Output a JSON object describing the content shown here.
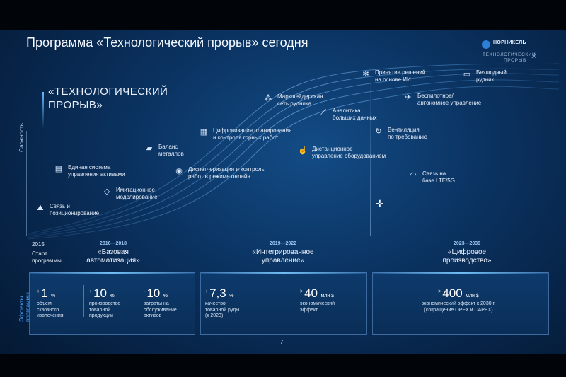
{
  "title": "Программа «Технологический прорыв» сегодня",
  "logo": {
    "name": "НОРНИКЕЛЬ",
    "sub_line1": "ТЕХНОЛОГИЧЕСКИЙ",
    "sub_line2": "ПРОРЫВ"
  },
  "program_label": {
    "line1": "«ТЕХНОЛОГИЧЕСКИЙ",
    "line2": "ПРОРЫВ»"
  },
  "y_axis_label": "Сложность",
  "initiatives": [
    {
      "icon": "positioning-icon",
      "line1": "Связь и",
      "line2": "позиционирование"
    },
    {
      "icon": "asset-management-icon",
      "line1": "Единая система",
      "line2": "управления активами"
    },
    {
      "icon": "cube-icon",
      "line1": "Имитационное",
      "line2": "моделирование"
    },
    {
      "icon": "metal-bars-icon",
      "line1": "Баланс",
      "line2": "металлов"
    },
    {
      "icon": "eye-icon",
      "line1": "Диспетчеризация и контроль",
      "line2": "работ в режиме онлайн"
    },
    {
      "icon": "planning-icon",
      "line1": "Цифровизация планирования",
      "line2": "и контроля горных работ"
    },
    {
      "icon": "network-icon",
      "line1": "Маркшейдерская",
      "line2": "сеть рудника"
    },
    {
      "icon": "remote-control-icon",
      "line1": "Дистанционное",
      "line2": "управление оборудованием"
    },
    {
      "icon": "analytics-icon",
      "line1": "Аналитика",
      "line2": "больших данных"
    },
    {
      "icon": "ai-brain-icon",
      "line1": "Принятие решений",
      "line2": "на основе ИИ"
    },
    {
      "icon": "drone-icon",
      "line1": "Беспилотное/",
      "line2": "автономное управление"
    },
    {
      "icon": "ventilation-icon",
      "line1": "Вентиляция",
      "line2": "по требованию"
    },
    {
      "icon": "wifi-icon",
      "line1": "Связь на",
      "line2": "базе LTE/5G"
    },
    {
      "icon": "monitor-icon",
      "line1": "Безлюдный",
      "line2": "рудник"
    }
  ],
  "timeline": {
    "start_year": "2015",
    "start_label_line1": "Старт",
    "start_label_line2": "программы",
    "phases": [
      {
        "years": "2016—2018",
        "line1": "«Базовая",
        "line2": "автоматизация»"
      },
      {
        "years": "2019—2022",
        "line1": "«Интегрированное",
        "line2": "управление»"
      },
      {
        "years": "2023—2030",
        "line1": "«Цифровое",
        "line2": "производство»"
      }
    ]
  },
  "effects_label": {
    "line1": "Эффекты",
    "line2": "программы"
  },
  "effects": [
    {
      "metrics": [
        {
          "prefix": "+",
          "value": "1",
          "unit": "%",
          "desc1": "объем",
          "desc2": "сквозного",
          "desc3": "извлечения"
        },
        {
          "prefix": "+",
          "value": "10",
          "unit": "%",
          "desc1": "производство",
          "desc2": "товарной",
          "desc3": "продукции"
        },
        {
          "prefix": "-",
          "value": "10",
          "unit": "%",
          "desc1": "затраты на",
          "desc2": "обслуживание",
          "desc3": "активов"
        }
      ]
    },
    {
      "metrics": [
        {
          "prefix": "+",
          "value": "7,3",
          "unit": "%",
          "desc1": "качество",
          "desc2": "товарной руды",
          "desc3": "(к 2023)"
        },
        {
          "prefix": ">",
          "value": "40",
          "unit": "млн $",
          "desc1": "экономический",
          "desc2": "эффект",
          "desc3": ""
        }
      ]
    },
    {
      "metrics": [
        {
          "prefix": ">",
          "value": "400",
          "unit": "млн $",
          "desc1": "экономический эффект к 2030 г.",
          "desc2": "(сокращение OPEX и CAPEX)",
          "desc3": ""
        }
      ]
    }
  ],
  "page_number": "7"
}
